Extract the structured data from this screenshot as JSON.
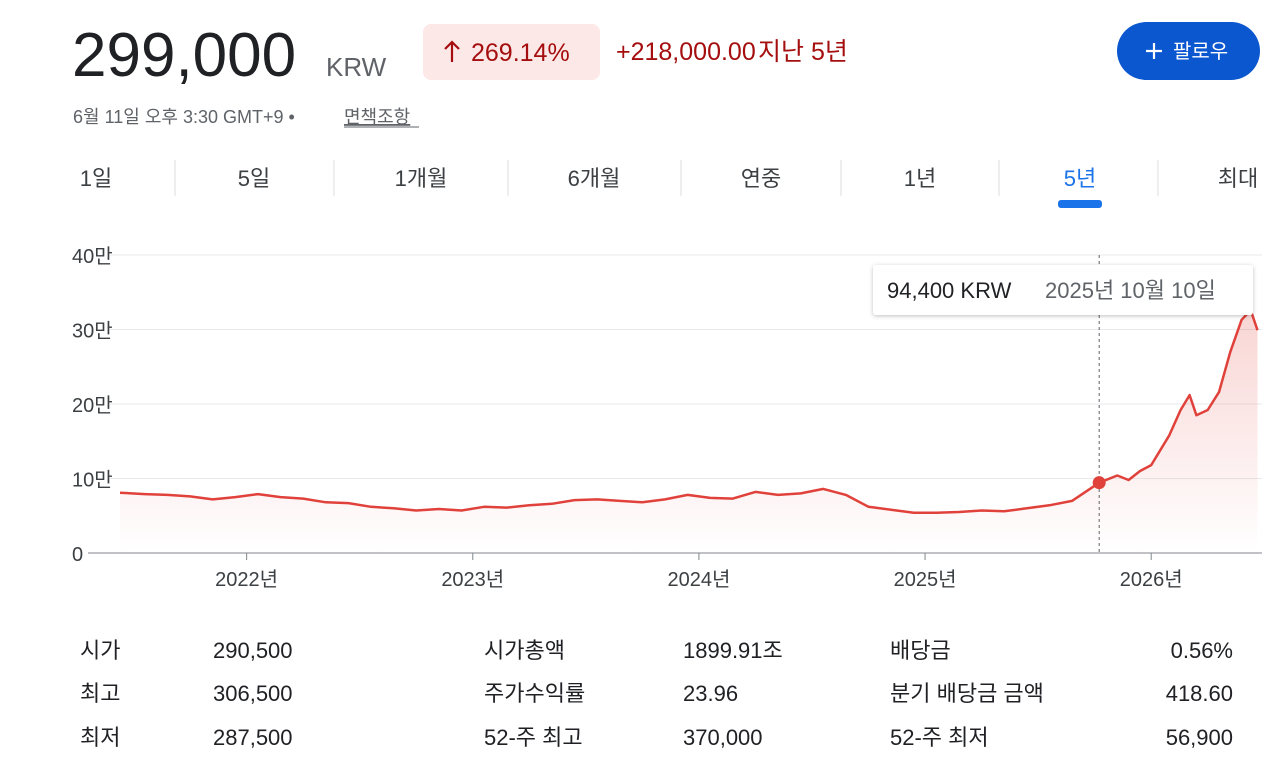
{
  "header": {
    "price": "299,000",
    "currency": "KRW",
    "change_percent": "269.14%",
    "change_amount": "+218,000.00",
    "change_period": "지난 5년",
    "follow_button": "팔로우",
    "timestamp": "6월 11일 오후 3:30 GMT+9 •",
    "disclaimer_link": "면책조항"
  },
  "tabs": {
    "items": [
      "1일",
      "5일",
      "1개월",
      "6개월",
      "연중",
      "1년",
      "5년",
      "최대"
    ],
    "active": 6
  },
  "chart_data": {
    "type": "line",
    "color": "#e0413a",
    "xlim": [
      2021.44,
      2026.49
    ],
    "xticks": [
      {
        "value": 2022,
        "label": "2022년"
      },
      {
        "value": 2023,
        "label": "2023년"
      },
      {
        "value": 2024,
        "label": "2024년"
      },
      {
        "value": 2025,
        "label": "2025년"
      },
      {
        "value": 2026,
        "label": "2026년"
      }
    ],
    "ylim": [
      0,
      400000
    ],
    "yticks": [
      0,
      {
        "value": 100000,
        "label": "10만"
      },
      {
        "value": 200000,
        "label": "20만"
      },
      {
        "value": 300000,
        "label": "30만"
      },
      {
        "value": 400000,
        "label": "40만"
      }
    ],
    "grid": true,
    "x": [
      2021.44,
      2021.55,
      2021.65,
      2021.75,
      2021.85,
      2021.95,
      2022.05,
      2022.15,
      2022.25,
      2022.35,
      2022.45,
      2022.55,
      2022.65,
      2022.75,
      2022.85,
      2022.95,
      2023.05,
      2023.15,
      2023.25,
      2023.35,
      2023.45,
      2023.55,
      2023.65,
      2023.75,
      2023.85,
      2023.95,
      2024.05,
      2024.15,
      2024.25,
      2024.35,
      2024.45,
      2024.55,
      2024.65,
      2024.75,
      2024.85,
      2024.95,
      2025.05,
      2025.15,
      2025.25,
      2025.35,
      2025.45,
      2025.55,
      2025.65,
      2025.77,
      2025.85,
      2025.9,
      2025.95,
      2026.0,
      2026.08,
      2026.13,
      2026.17,
      2026.2,
      2026.25,
      2026.3,
      2026.35,
      2026.4,
      2026.44,
      2026.47
    ],
    "series": [
      {
        "name": "KRW",
        "values": [
          81000,
          79000,
          78000,
          76000,
          72000,
          75000,
          79000,
          75000,
          73000,
          68000,
          67000,
          62000,
          60000,
          57000,
          59000,
          57000,
          62000,
          61000,
          64000,
          66000,
          71000,
          72000,
          70000,
          68000,
          72000,
          78000,
          74000,
          73000,
          82000,
          78000,
          80000,
          86000,
          78000,
          62000,
          58000,
          54000,
          54000,
          55000,
          57000,
          56000,
          60000,
          64000,
          70000,
          94400,
          104000,
          98000,
          110000,
          118000,
          158000,
          192000,
          212000,
          185000,
          192000,
          216000,
          270000,
          313000,
          326000,
          299000
        ]
      }
    ],
    "tooltip": {
      "x": 2025.77,
      "value": 94400,
      "price_label": "94,400 KRW",
      "date_label": "2025년 10월 10일"
    }
  },
  "stats": {
    "rows": [
      [
        "시가",
        "290,500",
        "시가총액",
        "1899.91조",
        "배당금",
        "0.56%"
      ],
      [
        "최고",
        "306,500",
        "주가수익률",
        "23.96",
        "분기 배당금 금액",
        "418.60"
      ],
      [
        "최저",
        "287,500",
        "52-주 최고",
        "370,000",
        "52-주 최저",
        "56,900"
      ]
    ]
  }
}
